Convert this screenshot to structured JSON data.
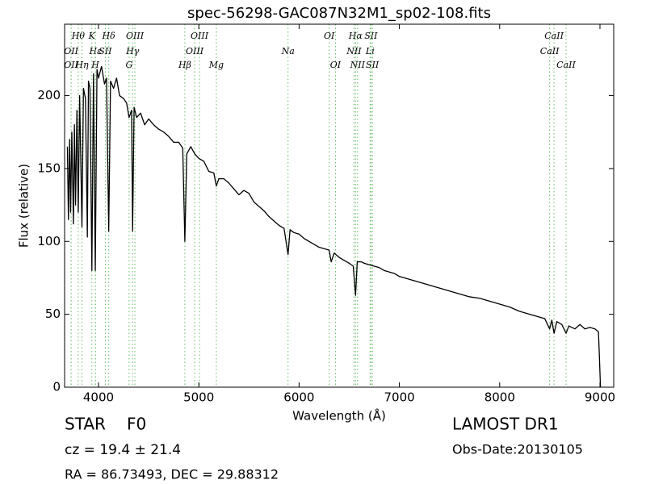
{
  "chart_data": {
    "type": "line",
    "title": "spec-56298-GAC087N32M1_sp02-108.fits",
    "xlabel": "Wavelength (Å)",
    "ylabel": "Flux (relative)",
    "xlim": [
      3662,
      9137
    ],
    "ylim": [
      0,
      249
    ],
    "xticks": [
      4000,
      5000,
      6000,
      7000,
      8000,
      9000
    ],
    "yticks": [
      0,
      50,
      100,
      150,
      200
    ],
    "color": "#000000",
    "line_color": "#66bb66",
    "x": [
      3690,
      3700,
      3712,
      3722,
      3734,
      3750,
      3760,
      3771,
      3785,
      3798,
      3812,
      3835,
      3850,
      3870,
      3889,
      3900,
      3915,
      3934,
      3950,
      3968,
      3985,
      4000,
      4030,
      4060,
      4080,
      4102,
      4120,
      4150,
      4180,
      4210,
      4250,
      4280,
      4305,
      4330,
      4340,
      4355,
      4380,
      4420,
      4460,
      4500,
      4550,
      4600,
      4650,
      4700,
      4750,
      4800,
      4840,
      4861,
      4880,
      4920,
      4960,
      5000,
      5050,
      5100,
      5150,
      5175,
      5200,
      5250,
      5300,
      5350,
      5400,
      5450,
      5500,
      5550,
      5600,
      5650,
      5700,
      5750,
      5800,
      5850,
      5890,
      5910,
      5950,
      6000,
      6050,
      6100,
      6150,
      6200,
      6250,
      6300,
      6320,
      6350,
      6400,
      6450,
      6500,
      6540,
      6563,
      6580,
      6620,
      6650,
      6700,
      6750,
      6800,
      6850,
      6900,
      6950,
      7000,
      7100,
      7200,
      7300,
      7400,
      7500,
      7600,
      7700,
      7800,
      7900,
      8000,
      8100,
      8200,
      8300,
      8400,
      8450,
      8498,
      8520,
      8542,
      8570,
      8620,
      8662,
      8690,
      8750,
      8800,
      8850,
      8900,
      8950,
      8985,
      8995,
      9005
    ],
    "values": [
      165,
      115,
      170,
      120,
      175,
      112,
      180,
      125,
      190,
      120,
      200,
      110,
      205,
      198,
      103,
      210,
      205,
      80,
      215,
      80,
      218,
      212,
      220,
      208,
      212,
      107,
      210,
      205,
      212,
      200,
      198,
      195,
      185,
      190,
      107,
      192,
      185,
      188,
      180,
      184,
      180,
      177,
      175,
      172,
      168,
      168,
      164,
      100,
      160,
      165,
      160,
      157,
      155,
      148,
      147,
      138,
      143,
      143,
      140,
      136,
      132,
      135,
      133,
      127,
      124,
      121,
      117,
      114,
      111,
      109,
      91,
      108,
      106,
      105,
      102,
      100,
      98,
      96,
      95,
      94,
      86,
      92,
      89,
      87,
      85,
      83,
      63,
      86,
      86,
      85,
      84,
      83,
      82,
      80,
      79,
      78,
      76,
      74,
      72,
      70,
      68,
      66,
      64,
      62,
      61,
      59,
      57,
      55,
      52,
      50,
      48,
      47,
      40,
      46,
      37,
      45,
      43,
      37,
      42,
      40,
      43,
      40,
      41,
      40,
      38,
      20,
      0
    ],
    "lines": [
      {
        "label": "OII",
        "wavelength": 3727
      },
      {
        "label": "OII",
        "wavelength": 3727
      },
      {
        "label": "Hθ",
        "wavelength": 3798
      },
      {
        "label": "Hη",
        "wavelength": 3835
      },
      {
        "label": "K",
        "wavelength": 3934
      },
      {
        "label": "Hε",
        "wavelength": 3970
      },
      {
        "label": "SII",
        "wavelength": 4068
      },
      {
        "label": "H",
        "wavelength": 3968
      },
      {
        "label": "Hδ",
        "wavelength": 4102
      },
      {
        "label": "OIII",
        "wavelength": 4363
      },
      {
        "label": "Hγ",
        "wavelength": 4340
      },
      {
        "label": "G",
        "wavelength": 4305
      },
      {
        "label": "OIII",
        "wavelength": 5007
      },
      {
        "label": "OIII",
        "wavelength": 4959
      },
      {
        "label": "Hβ",
        "wavelength": 4861
      },
      {
        "label": "Mg",
        "wavelength": 5175
      },
      {
        "label": "Na",
        "wavelength": 5890
      },
      {
        "label": "OI",
        "wavelength": 6300
      },
      {
        "label": "OI",
        "wavelength": 6363
      },
      {
        "label": "Hα",
        "wavelength": 6563
      },
      {
        "label": "SII",
        "wavelength": 6716
      },
      {
        "label": "NII",
        "wavelength": 6548
      },
      {
        "label": "Li",
        "wavelength": 6708
      },
      {
        "label": "NII",
        "wavelength": 6583
      },
      {
        "label": "SII",
        "wavelength": 6731
      },
      {
        "label": "CaII",
        "wavelength": 8542
      },
      {
        "label": "CaII",
        "wavelength": 8498
      },
      {
        "label": "CaII",
        "wavelength": 8662
      }
    ],
    "class": "STAR",
    "subclass": "F0",
    "redshift_text": "cz = 19.4 ± 21.4",
    "coords_text": "RA = 86.73493, DEC = 29.88312",
    "survey": "LAMOST DR1",
    "obs_date": "Obs-Date:20130105"
  }
}
